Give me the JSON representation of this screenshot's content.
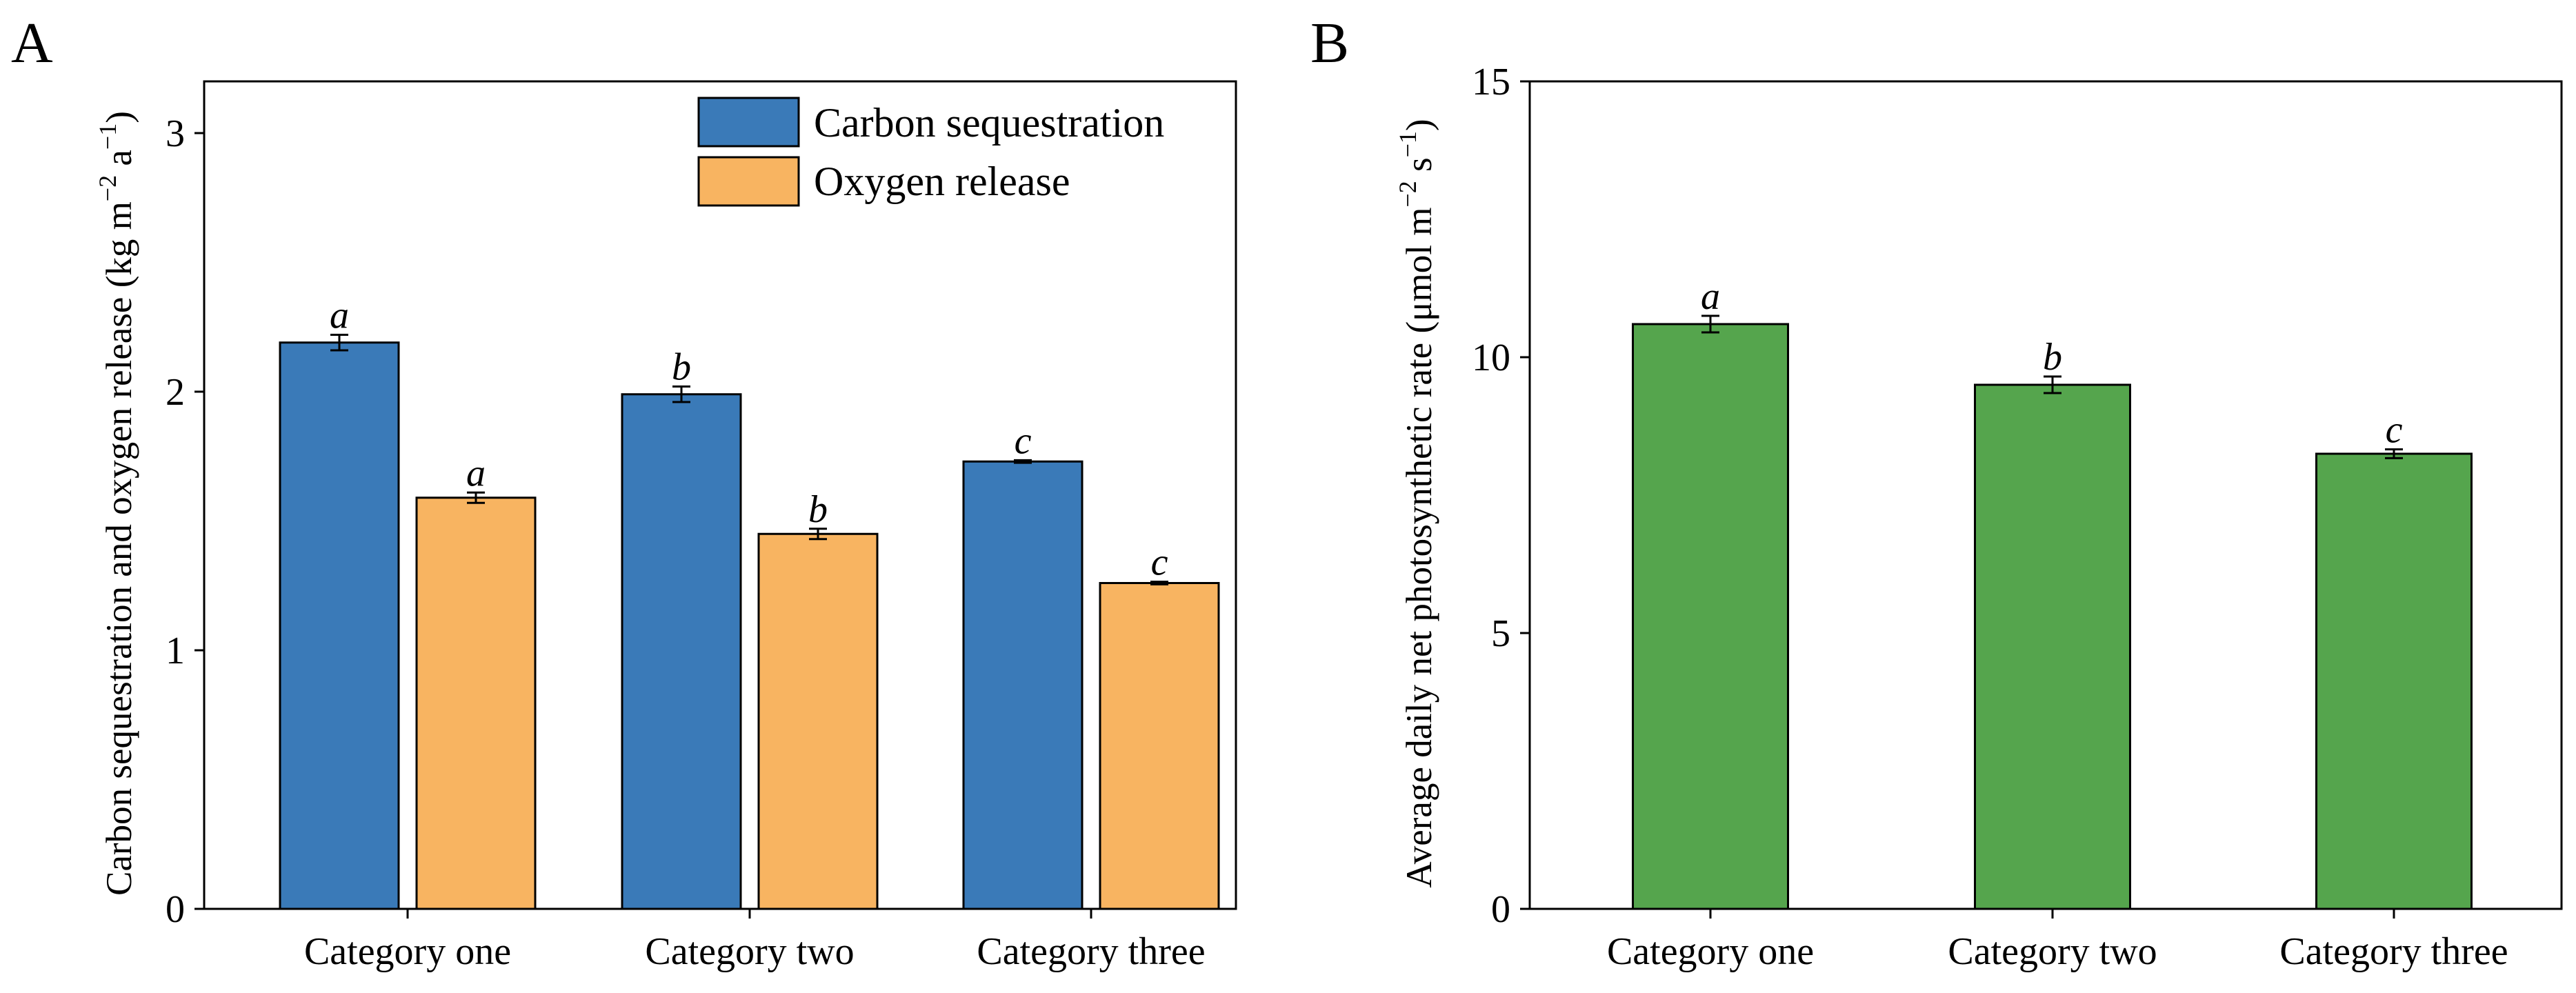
{
  "chart_data": [
    {
      "panel": "A",
      "type": "bar",
      "categories": [
        "Category one",
        "Category two",
        "Category three"
      ],
      "series": [
        {
          "name": "Carbon sequestration",
          "color": "#3a7ab8",
          "values": [
            2.19,
            1.99,
            1.73
          ],
          "errors": [
            0.03,
            0.03,
            0.005
          ],
          "labels": [
            "a",
            "b",
            "c"
          ]
        },
        {
          "name": "Oxygen release",
          "color": "#f8b461",
          "values": [
            1.59,
            1.45,
            1.26
          ],
          "errors": [
            0.02,
            0.02,
            0.005
          ],
          "labels": [
            "a",
            "b",
            "c"
          ]
        }
      ],
      "ylabel_main": "Carbon sequestration and oxygen release (kg m",
      "ylabel_sup1": "−2",
      "ylabel_mid": " a",
      "ylabel_sup2": "−1",
      "ylabel_end": ")",
      "ylim": [
        0,
        3.2
      ],
      "yticks": [
        0,
        1,
        2,
        3
      ],
      "legend": "top-right"
    },
    {
      "panel": "B",
      "type": "bar",
      "categories": [
        "Category one",
        "Category two",
        "Category three"
      ],
      "series": [
        {
          "name": "Average daily net photosynthetic rate",
          "color": "#55a54d",
          "values": [
            10.6,
            9.5,
            8.25
          ],
          "errors": [
            0.15,
            0.15,
            0.08
          ],
          "labels": [
            "a",
            "b",
            "c"
          ]
        }
      ],
      "ylabel_main": "Average daily net photosynthetic rate (μmol m",
      "ylabel_sup1": "−2",
      "ylabel_mid": " s",
      "ylabel_sup2": "−1",
      "ylabel_end": ")",
      "ylim": [
        0,
        15
      ],
      "yticks": [
        0,
        5,
        10,
        15
      ]
    }
  ]
}
